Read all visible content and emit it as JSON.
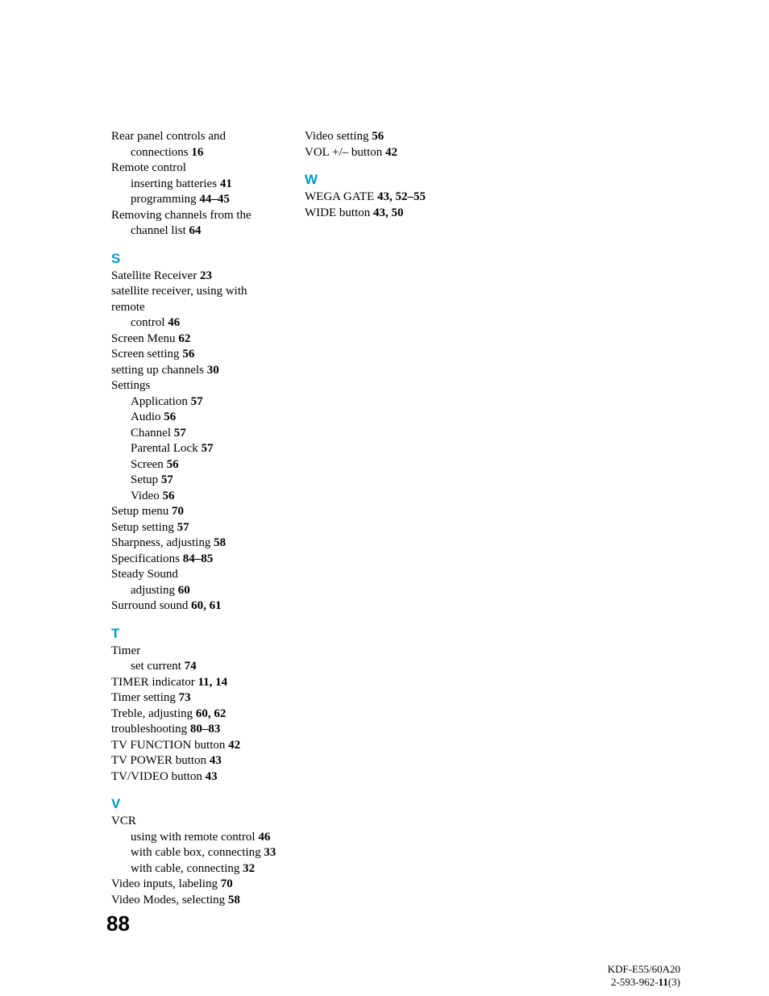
{
  "colors": {
    "heading": "#0099cc",
    "text": "#000000",
    "background": "#ffffff"
  },
  "typography": {
    "body_font": "Times New Roman",
    "body_size_pt": 11,
    "heading_font": "Arial",
    "heading_size_pt": 13,
    "heading_weight": "bold",
    "page_number_font": "Arial",
    "page_number_size_pt": 20,
    "page_number_weight": "900"
  },
  "page_number": "88",
  "footer": {
    "line1_a": "KDF-E55/60A20",
    "line2_a": "2-593-962-",
    "line2_bold": "11",
    "line2_b": "(3)"
  },
  "columns": [
    {
      "groups": [
        {
          "letter": null,
          "items": [
            {
              "text": "Rear panel controls and ",
              "indent": 0
            },
            {
              "text": "connections ",
              "pages": "16",
              "indent": 1
            },
            {
              "text": "Remote control",
              "indent": 0
            },
            {
              "text": "inserting batteries ",
              "pages": "41",
              "indent": 2
            },
            {
              "text": "programming ",
              "pages": "44–45",
              "indent": 2
            },
            {
              "text": "Removing channels from the ",
              "indent": 0
            },
            {
              "text": "channel list ",
              "pages": "64",
              "indent": 1
            }
          ]
        },
        {
          "letter": "S",
          "items": [
            {
              "text": "Satellite Receiver ",
              "pages": "23",
              "indent": 0
            },
            {
              "text": "satellite receiver, using with remote ",
              "indent": 0
            },
            {
              "text": "control ",
              "pages": "46",
              "indent": 1
            },
            {
              "text": "Screen Menu ",
              "pages": "62",
              "indent": 0
            },
            {
              "text": "Screen setting ",
              "pages": "56",
              "indent": 0
            },
            {
              "text": "setting up channels ",
              "pages": "30",
              "indent": 0
            },
            {
              "text": "Settings",
              "indent": 0
            },
            {
              "text": "Application ",
              "pages": "57",
              "indent": 2
            },
            {
              "text": "Audio ",
              "pages": "56",
              "indent": 2
            },
            {
              "text": "Channel ",
              "pages": "57",
              "indent": 2
            },
            {
              "text": "Parental Lock ",
              "pages": "57",
              "indent": 2
            },
            {
              "text": "Screen ",
              "pages": "56",
              "indent": 2
            },
            {
              "text": "Setup ",
              "pages": "57",
              "indent": 2
            },
            {
              "text": "Video ",
              "pages": "56",
              "indent": 2
            },
            {
              "text": "Setup menu ",
              "pages": "70",
              "indent": 0
            },
            {
              "text": "Setup setting ",
              "pages": "57",
              "indent": 0
            },
            {
              "text": "Sharpness, adjusting ",
              "pages": "58",
              "indent": 0
            },
            {
              "text": "Specifications ",
              "pages": "84–85",
              "indent": 0
            },
            {
              "text": "Steady Sound",
              "indent": 0
            },
            {
              "text": "adjusting ",
              "pages": "60",
              "indent": 2
            },
            {
              "text": "Surround sound ",
              "pages": "60, 61",
              "indent": 0
            }
          ]
        },
        {
          "letter": "T",
          "items": [
            {
              "text": "Timer",
              "indent": 0
            },
            {
              "text": "set current ",
              "pages": "74",
              "indent": 2
            },
            {
              "text": "TIMER indicator ",
              "pages": "11, 14",
              "indent": 0
            },
            {
              "text": "Timer setting ",
              "pages": "73",
              "indent": 0
            },
            {
              "text": "Treble, adjusting ",
              "pages": "60, 62",
              "indent": 0
            },
            {
              "text": "troubleshooting ",
              "pages": "80–83",
              "indent": 0
            },
            {
              "text": "TV FUNCTION button ",
              "pages": "42",
              "indent": 0
            },
            {
              "text": "TV POWER button ",
              "pages": "43",
              "indent": 0
            },
            {
              "text": "TV/VIDEO button ",
              "pages": "43",
              "indent": 0
            }
          ]
        },
        {
          "letter": "V",
          "items": [
            {
              "text": "VCR",
              "indent": 0
            },
            {
              "text": "using with remote control ",
              "pages": "46",
              "indent": 2
            },
            {
              "text": "with cable box, connecting ",
              "pages": "33",
              "indent": 2
            },
            {
              "text": "with cable, connecting ",
              "pages": "32",
              "indent": 2
            },
            {
              "text": "Video inputs, labeling ",
              "pages": "70",
              "indent": 0
            },
            {
              "text": "Video Modes, selecting ",
              "pages": "58",
              "indent": 0
            }
          ]
        }
      ]
    },
    {
      "groups": [
        {
          "letter": null,
          "items": [
            {
              "text": "Video setting ",
              "pages": "56",
              "indent": 0
            },
            {
              "text": "VOL +/– button ",
              "pages": "42",
              "indent": 0
            }
          ]
        },
        {
          "letter": "W",
          "items": [
            {
              "text": "WEGA GATE ",
              "pages": "43, 52–55",
              "indent": 0
            },
            {
              "text": "WIDE button ",
              "pages": "43, 50",
              "indent": 0
            }
          ]
        }
      ]
    }
  ]
}
